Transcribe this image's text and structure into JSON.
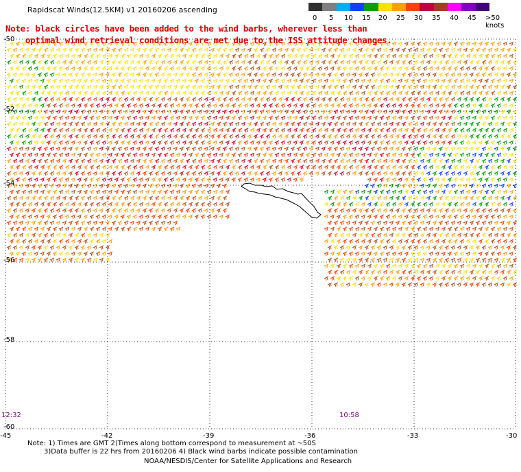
{
  "header": {
    "title": "Rapidscat Winds(12.5KM) v1 20160206 ascending",
    "note_line1": "Note: black circles have been added to the wind barbs, wherever less than",
    "note_line2": "    optimal wind retrieval conditions are met due to the ISS attitude changes."
  },
  "colorbar": {
    "labels": [
      "0",
      "5",
      "10",
      "15",
      "20",
      "25",
      "30",
      "35",
      "40",
      "45",
      ">50 knots"
    ],
    "colors": [
      "#303030",
      "#808080",
      "#00b0f0",
      "#1040ff",
      "#00a000",
      "#ffe000",
      "#ffa000",
      "#ff4000",
      "#c00040",
      "#a04020",
      "#ff00ff",
      "#8000c0",
      "#400080"
    ]
  },
  "axes": {
    "lat_labels": [
      "-50",
      "-52",
      "-54",
      "-56",
      "-58",
      "-60"
    ],
    "lon_labels": [
      "-45",
      "-42",
      "-39",
      "-36",
      "-33",
      "-30"
    ]
  },
  "time_labels": [
    "12:32",
    "10:58"
  ],
  "footer": {
    "line1": "Note: 1) Times are GMT 2)Times along bottom correspond to measurement at ~50S",
    "line2": "3)Data buffer is 22 hrs from 20160206 4) Black wind barbs indicate possible contamination",
    "credit": "NOAA/NESDIS/Center for Satellite Applications and Research"
  }
}
